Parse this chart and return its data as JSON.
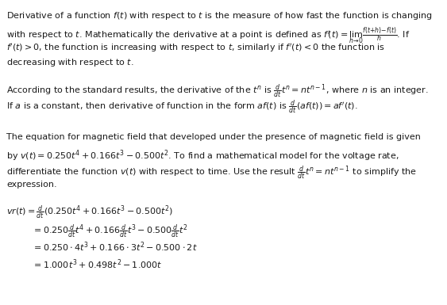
{
  "background_color": "#ffffff",
  "text_color": "#1a1a1a",
  "figsize": [
    5.63,
    3.85
  ],
  "dpi": 100
}
